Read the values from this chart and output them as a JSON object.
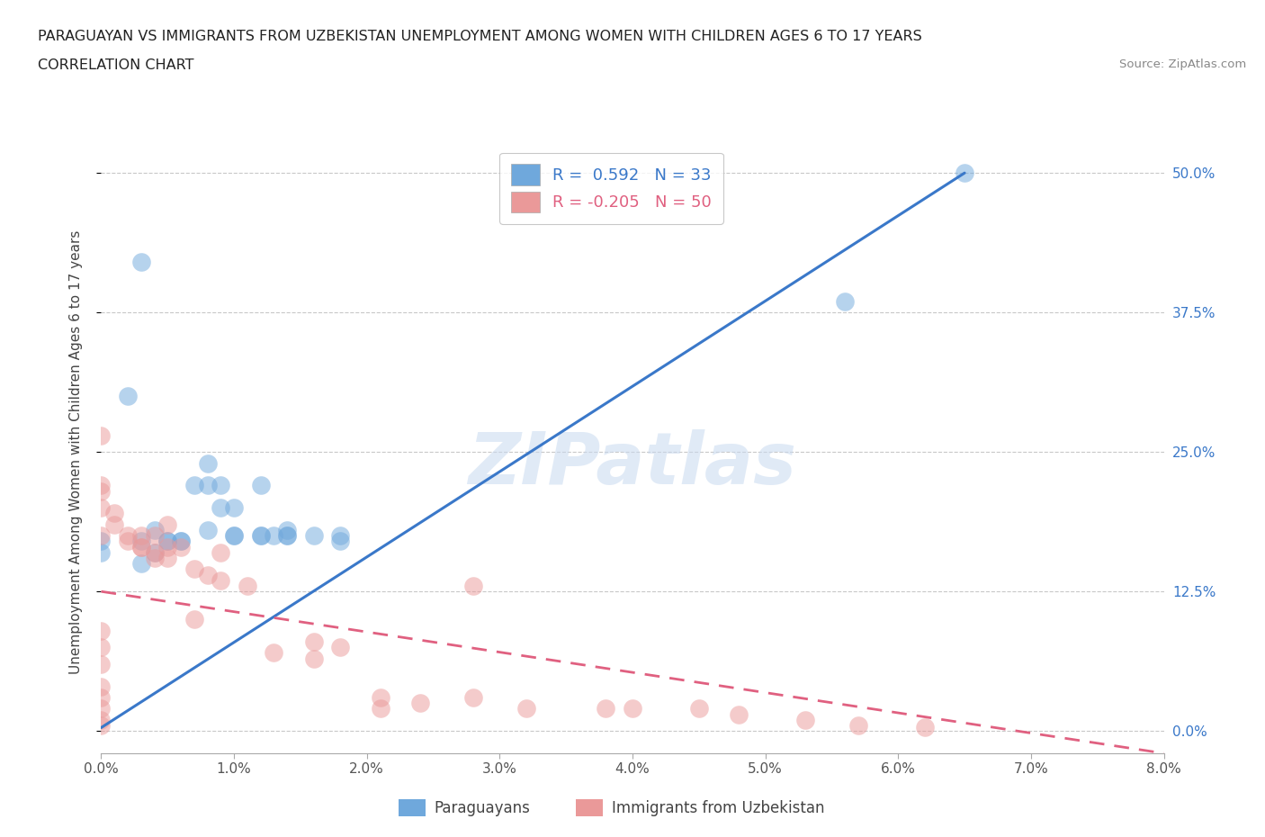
{
  "title_line1": "PARAGUAYAN VS IMMIGRANTS FROM UZBEKISTAN UNEMPLOYMENT AMONG WOMEN WITH CHILDREN AGES 6 TO 17 YEARS",
  "title_line2": "CORRELATION CHART",
  "source": "Source: ZipAtlas.com",
  "ylabel": "Unemployment Among Women with Children Ages 6 to 17 years",
  "xlabel_ticks": [
    "0.0%",
    "1.0%",
    "2.0%",
    "3.0%",
    "4.0%",
    "5.0%",
    "6.0%",
    "7.0%",
    "8.0%"
  ],
  "ylabel_ticks": [
    "0.0%",
    "12.5%",
    "25.0%",
    "37.5%",
    "50.0%"
  ],
  "xlim": [
    0.0,
    0.08
  ],
  "ylim": [
    -0.02,
    0.52
  ],
  "blue_R": "0.592",
  "blue_N": "33",
  "pink_R": "-0.205",
  "pink_N": "50",
  "legend_label_blue": "Paraguayans",
  "legend_label_pink": "Immigrants from Uzbekistan",
  "blue_color": "#6fa8dc",
  "pink_color": "#ea9999",
  "blue_scatter": [
    [
      0.0,
      0.16
    ],
    [
      0.0,
      0.17
    ],
    [
      0.002,
      0.3
    ],
    [
      0.003,
      0.42
    ],
    [
      0.003,
      0.15
    ],
    [
      0.003,
      0.17
    ],
    [
      0.004,
      0.16
    ],
    [
      0.004,
      0.18
    ],
    [
      0.005,
      0.17
    ],
    [
      0.005,
      0.17
    ],
    [
      0.006,
      0.17
    ],
    [
      0.006,
      0.17
    ],
    [
      0.007,
      0.22
    ],
    [
      0.008,
      0.24
    ],
    [
      0.008,
      0.18
    ],
    [
      0.008,
      0.22
    ],
    [
      0.009,
      0.22
    ],
    [
      0.009,
      0.2
    ],
    [
      0.01,
      0.175
    ],
    [
      0.01,
      0.175
    ],
    [
      0.01,
      0.2
    ],
    [
      0.012,
      0.175
    ],
    [
      0.012,
      0.175
    ],
    [
      0.012,
      0.22
    ],
    [
      0.013,
      0.175
    ],
    [
      0.014,
      0.18
    ],
    [
      0.014,
      0.175
    ],
    [
      0.014,
      0.175
    ],
    [
      0.016,
      0.175
    ],
    [
      0.018,
      0.175
    ],
    [
      0.018,
      0.17
    ],
    [
      0.056,
      0.385
    ],
    [
      0.065,
      0.5
    ]
  ],
  "pink_scatter": [
    [
      0.0,
      0.265
    ],
    [
      0.0,
      0.22
    ],
    [
      0.0,
      0.215
    ],
    [
      0.0,
      0.2
    ],
    [
      0.0,
      0.175
    ],
    [
      0.0,
      0.09
    ],
    [
      0.0,
      0.075
    ],
    [
      0.0,
      0.06
    ],
    [
      0.0,
      0.04
    ],
    [
      0.0,
      0.03
    ],
    [
      0.0,
      0.02
    ],
    [
      0.0,
      0.01
    ],
    [
      0.0,
      0.005
    ],
    [
      0.001,
      0.195
    ],
    [
      0.001,
      0.185
    ],
    [
      0.002,
      0.175
    ],
    [
      0.002,
      0.17
    ],
    [
      0.003,
      0.165
    ],
    [
      0.003,
      0.175
    ],
    [
      0.003,
      0.165
    ],
    [
      0.004,
      0.155
    ],
    [
      0.004,
      0.16
    ],
    [
      0.004,
      0.175
    ],
    [
      0.005,
      0.185
    ],
    [
      0.005,
      0.165
    ],
    [
      0.005,
      0.155
    ],
    [
      0.006,
      0.165
    ],
    [
      0.007,
      0.145
    ],
    [
      0.007,
      0.1
    ],
    [
      0.008,
      0.14
    ],
    [
      0.009,
      0.135
    ],
    [
      0.009,
      0.16
    ],
    [
      0.011,
      0.13
    ],
    [
      0.013,
      0.07
    ],
    [
      0.016,
      0.08
    ],
    [
      0.016,
      0.065
    ],
    [
      0.018,
      0.075
    ],
    [
      0.021,
      0.03
    ],
    [
      0.021,
      0.02
    ],
    [
      0.024,
      0.025
    ],
    [
      0.028,
      0.13
    ],
    [
      0.028,
      0.03
    ],
    [
      0.032,
      0.02
    ],
    [
      0.038,
      0.02
    ],
    [
      0.04,
      0.02
    ],
    [
      0.045,
      0.02
    ],
    [
      0.048,
      0.015
    ],
    [
      0.053,
      0.01
    ],
    [
      0.057,
      0.005
    ],
    [
      0.062,
      0.003
    ]
  ],
  "blue_trend_x": [
    0.0,
    0.065
  ],
  "blue_trend_y": [
    0.003,
    0.5
  ],
  "pink_trend_x": [
    0.0,
    0.08
  ],
  "pink_trend_y": [
    0.125,
    -0.02
  ],
  "watermark_text": "ZIPatlas",
  "background_color": "#ffffff",
  "grid_color": "#c8c8c8"
}
